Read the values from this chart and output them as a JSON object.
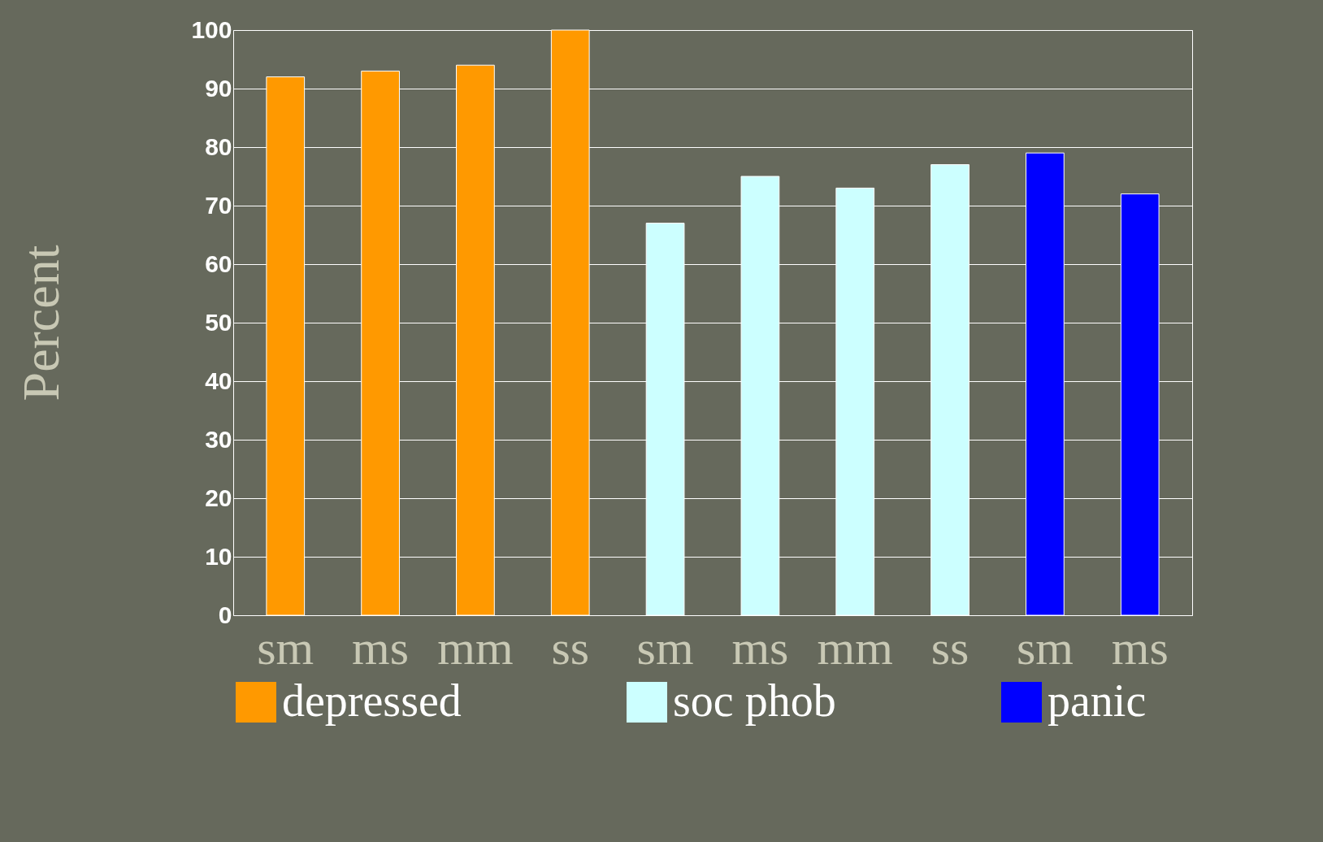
{
  "chart_data": {
    "type": "bar",
    "ylabel": "Percent",
    "categories": [
      "sm",
      "ms",
      "mm",
      "ss",
      "sm",
      "ms",
      "mm",
      "ss",
      "sm",
      "ms"
    ],
    "series": [
      {
        "name": "depressed",
        "color": "#ff9900",
        "values": [
          92,
          93,
          94,
          100,
          null,
          null,
          null,
          null,
          null,
          null
        ]
      },
      {
        "name": "soc phob",
        "color": "#ccffff",
        "values": [
          null,
          null,
          null,
          null,
          67,
          75,
          73,
          77,
          null,
          null
        ]
      },
      {
        "name": "panic",
        "color": "#0000ff",
        "values": [
          null,
          null,
          null,
          null,
          null,
          null,
          null,
          null,
          79,
          72
        ]
      }
    ],
    "ylim": [
      0,
      100
    ],
    "yticks": [
      0,
      10,
      20,
      30,
      40,
      50,
      60,
      70,
      80,
      90,
      100
    ],
    "grid": "y",
    "legend": "bottom"
  }
}
